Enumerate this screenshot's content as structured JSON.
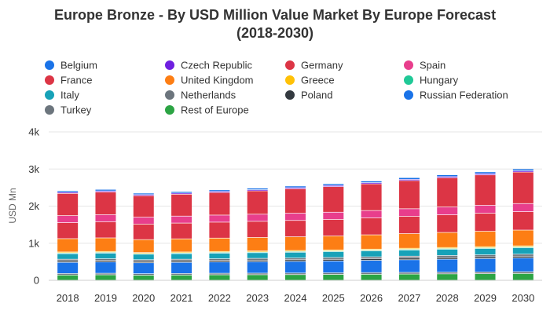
{
  "chart_data": {
    "type": "bar",
    "stacked": true,
    "title_lines": [
      "Europe Bronze - By USD Million Value Market By Europe Forecast",
      "(2018-2030)"
    ],
    "xlabel": "",
    "ylabel": "USD Mn",
    "ylim": [
      0,
      4000
    ],
    "yticks": [
      0,
      1000,
      2000,
      3000,
      4000
    ],
    "ytick_labels": [
      "0",
      "1k",
      "2k",
      "3k",
      "4k"
    ],
    "grid": true,
    "legend_position": "top",
    "categories": [
      "2018",
      "2019",
      "2020",
      "2021",
      "2022",
      "2023",
      "2024",
      "2025",
      "2026",
      "2027",
      "2028",
      "2029",
      "2030"
    ],
    "series": [
      {
        "name": "Rest of Europe",
        "color": "#2ca444",
        "values": [
          150,
          155,
          145,
          150,
          155,
          157,
          160,
          165,
          170,
          175,
          180,
          185,
          190
        ]
      },
      {
        "name": "Turkey",
        "color": "#6c757d",
        "values": [
          40,
          41,
          39,
          40,
          41,
          42,
          43,
          44,
          45,
          46,
          47,
          48,
          49
        ]
      },
      {
        "name": "Russian Federation",
        "color": "#1a73e8",
        "values": [
          300,
          305,
          295,
          300,
          305,
          310,
          315,
          320,
          330,
          340,
          350,
          360,
          370
        ]
      },
      {
        "name": "Poland",
        "color": "#343a40",
        "values": [
          40,
          41,
          39,
          40,
          41,
          42,
          43,
          44,
          45,
          46,
          47,
          48,
          49
        ]
      },
      {
        "name": "Netherlands",
        "color": "#6c757d",
        "values": [
          45,
          46,
          44,
          45,
          46,
          47,
          48,
          49,
          50,
          51,
          52,
          53,
          54
        ]
      },
      {
        "name": "Italy",
        "color": "#17a2b8",
        "values": [
          150,
          152,
          148,
          150,
          152,
          153,
          155,
          157,
          160,
          163,
          166,
          169,
          172
        ]
      },
      {
        "name": "Hungary",
        "color": "#20c997",
        "values": [
          20,
          20,
          20,
          20,
          20,
          20,
          21,
          21,
          21,
          22,
          22,
          22,
          23
        ]
      },
      {
        "name": "Greece",
        "color": "#ffc107",
        "values": [
          25,
          25,
          24,
          25,
          25,
          26,
          26,
          27,
          27,
          28,
          28,
          29,
          29
        ]
      },
      {
        "name": "United Kingdom",
        "color": "#fd7e14",
        "values": [
          360,
          365,
          350,
          355,
          360,
          365,
          370,
          375,
          385,
          395,
          405,
          415,
          425
        ]
      },
      {
        "name": "France",
        "color": "#dc3545",
        "values": [
          430,
          435,
          420,
          425,
          430,
          435,
          440,
          445,
          455,
          465,
          475,
          485,
          495
        ]
      },
      {
        "name": "Spain",
        "color": "#e83e8c",
        "values": [
          190,
          192,
          185,
          188,
          190,
          192,
          194,
          196,
          200,
          205,
          210,
          215,
          220
        ]
      },
      {
        "name": "Germany",
        "color": "#dc3545",
        "values": [
          600,
          610,
          580,
          590,
          610,
          630,
          660,
          690,
          720,
          760,
          790,
          820,
          850
        ]
      },
      {
        "name": "Czech Republic",
        "color": "#6f1fe0",
        "values": [
          30,
          30,
          29,
          30,
          30,
          31,
          31,
          32,
          32,
          33,
          33,
          34,
          34
        ]
      },
      {
        "name": "Belgium",
        "color": "#1a73e8",
        "values": [
          40,
          41,
          39,
          40,
          41,
          42,
          43,
          44,
          45,
          46,
          47,
          48,
          49
        ]
      }
    ],
    "legend_order": [
      "Belgium",
      "Czech Republic",
      "Germany",
      "Spain",
      "France",
      "United Kingdom",
      "Greece",
      "Hungary",
      "Italy",
      "Netherlands",
      "Poland",
      "Russian Federation",
      "Turkey",
      "Rest of Europe"
    ]
  }
}
